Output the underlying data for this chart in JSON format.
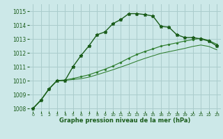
{
  "bg_color": "#cce8e8",
  "grid_color": "#aacccc",
  "line_color_main": "#1a5c1a",
  "line_color_secondary": "#2e7d2e",
  "title": "Graphe pression niveau de la mer (hPa)",
  "xlim": [
    -0.5,
    23.5
  ],
  "ylim": [
    1007.8,
    1015.5
  ],
  "yticks": [
    1008,
    1009,
    1010,
    1011,
    1012,
    1013,
    1014,
    1015
  ],
  "xticks": [
    0,
    1,
    2,
    3,
    4,
    5,
    6,
    7,
    8,
    9,
    10,
    11,
    12,
    13,
    14,
    15,
    16,
    17,
    18,
    19,
    20,
    21,
    22,
    23
  ],
  "series1_x": [
    0,
    1,
    2,
    3,
    4,
    5,
    6,
    7,
    8,
    9,
    10,
    11,
    12,
    13,
    14,
    15,
    16,
    17,
    18,
    19,
    20,
    21,
    22,
    23
  ],
  "series1_y": [
    1008.0,
    1008.6,
    1009.4,
    1010.0,
    1010.0,
    1011.0,
    1011.8,
    1012.5,
    1013.3,
    1013.5,
    1014.1,
    1014.4,
    1014.82,
    1014.82,
    1014.75,
    1014.65,
    1013.9,
    1013.85,
    1013.3,
    1013.1,
    1013.1,
    1013.0,
    1012.85,
    1012.5
  ],
  "series2_x": [
    0,
    1,
    2,
    3,
    4,
    5,
    6,
    7,
    8,
    9,
    10,
    11,
    12,
    13,
    14,
    15,
    16,
    17,
    18,
    19,
    20,
    21,
    22,
    23
  ],
  "series2_y": [
    1008.0,
    1008.6,
    1009.4,
    1010.0,
    1010.05,
    1010.15,
    1010.28,
    1010.42,
    1010.62,
    1010.82,
    1011.05,
    1011.32,
    1011.62,
    1011.88,
    1012.1,
    1012.28,
    1012.48,
    1012.6,
    1012.72,
    1012.85,
    1012.95,
    1013.05,
    1012.88,
    1012.62
  ],
  "series3_x": [
    0,
    1,
    2,
    3,
    4,
    5,
    6,
    7,
    8,
    9,
    10,
    11,
    12,
    13,
    14,
    15,
    16,
    17,
    18,
    19,
    20,
    21,
    22,
    23
  ],
  "series3_y": [
    1008.0,
    1008.6,
    1009.4,
    1010.0,
    1010.02,
    1010.08,
    1010.14,
    1010.25,
    1010.42,
    1010.6,
    1010.78,
    1010.98,
    1011.18,
    1011.4,
    1011.6,
    1011.78,
    1011.96,
    1012.08,
    1012.2,
    1012.32,
    1012.46,
    1012.56,
    1012.46,
    1012.22
  ]
}
